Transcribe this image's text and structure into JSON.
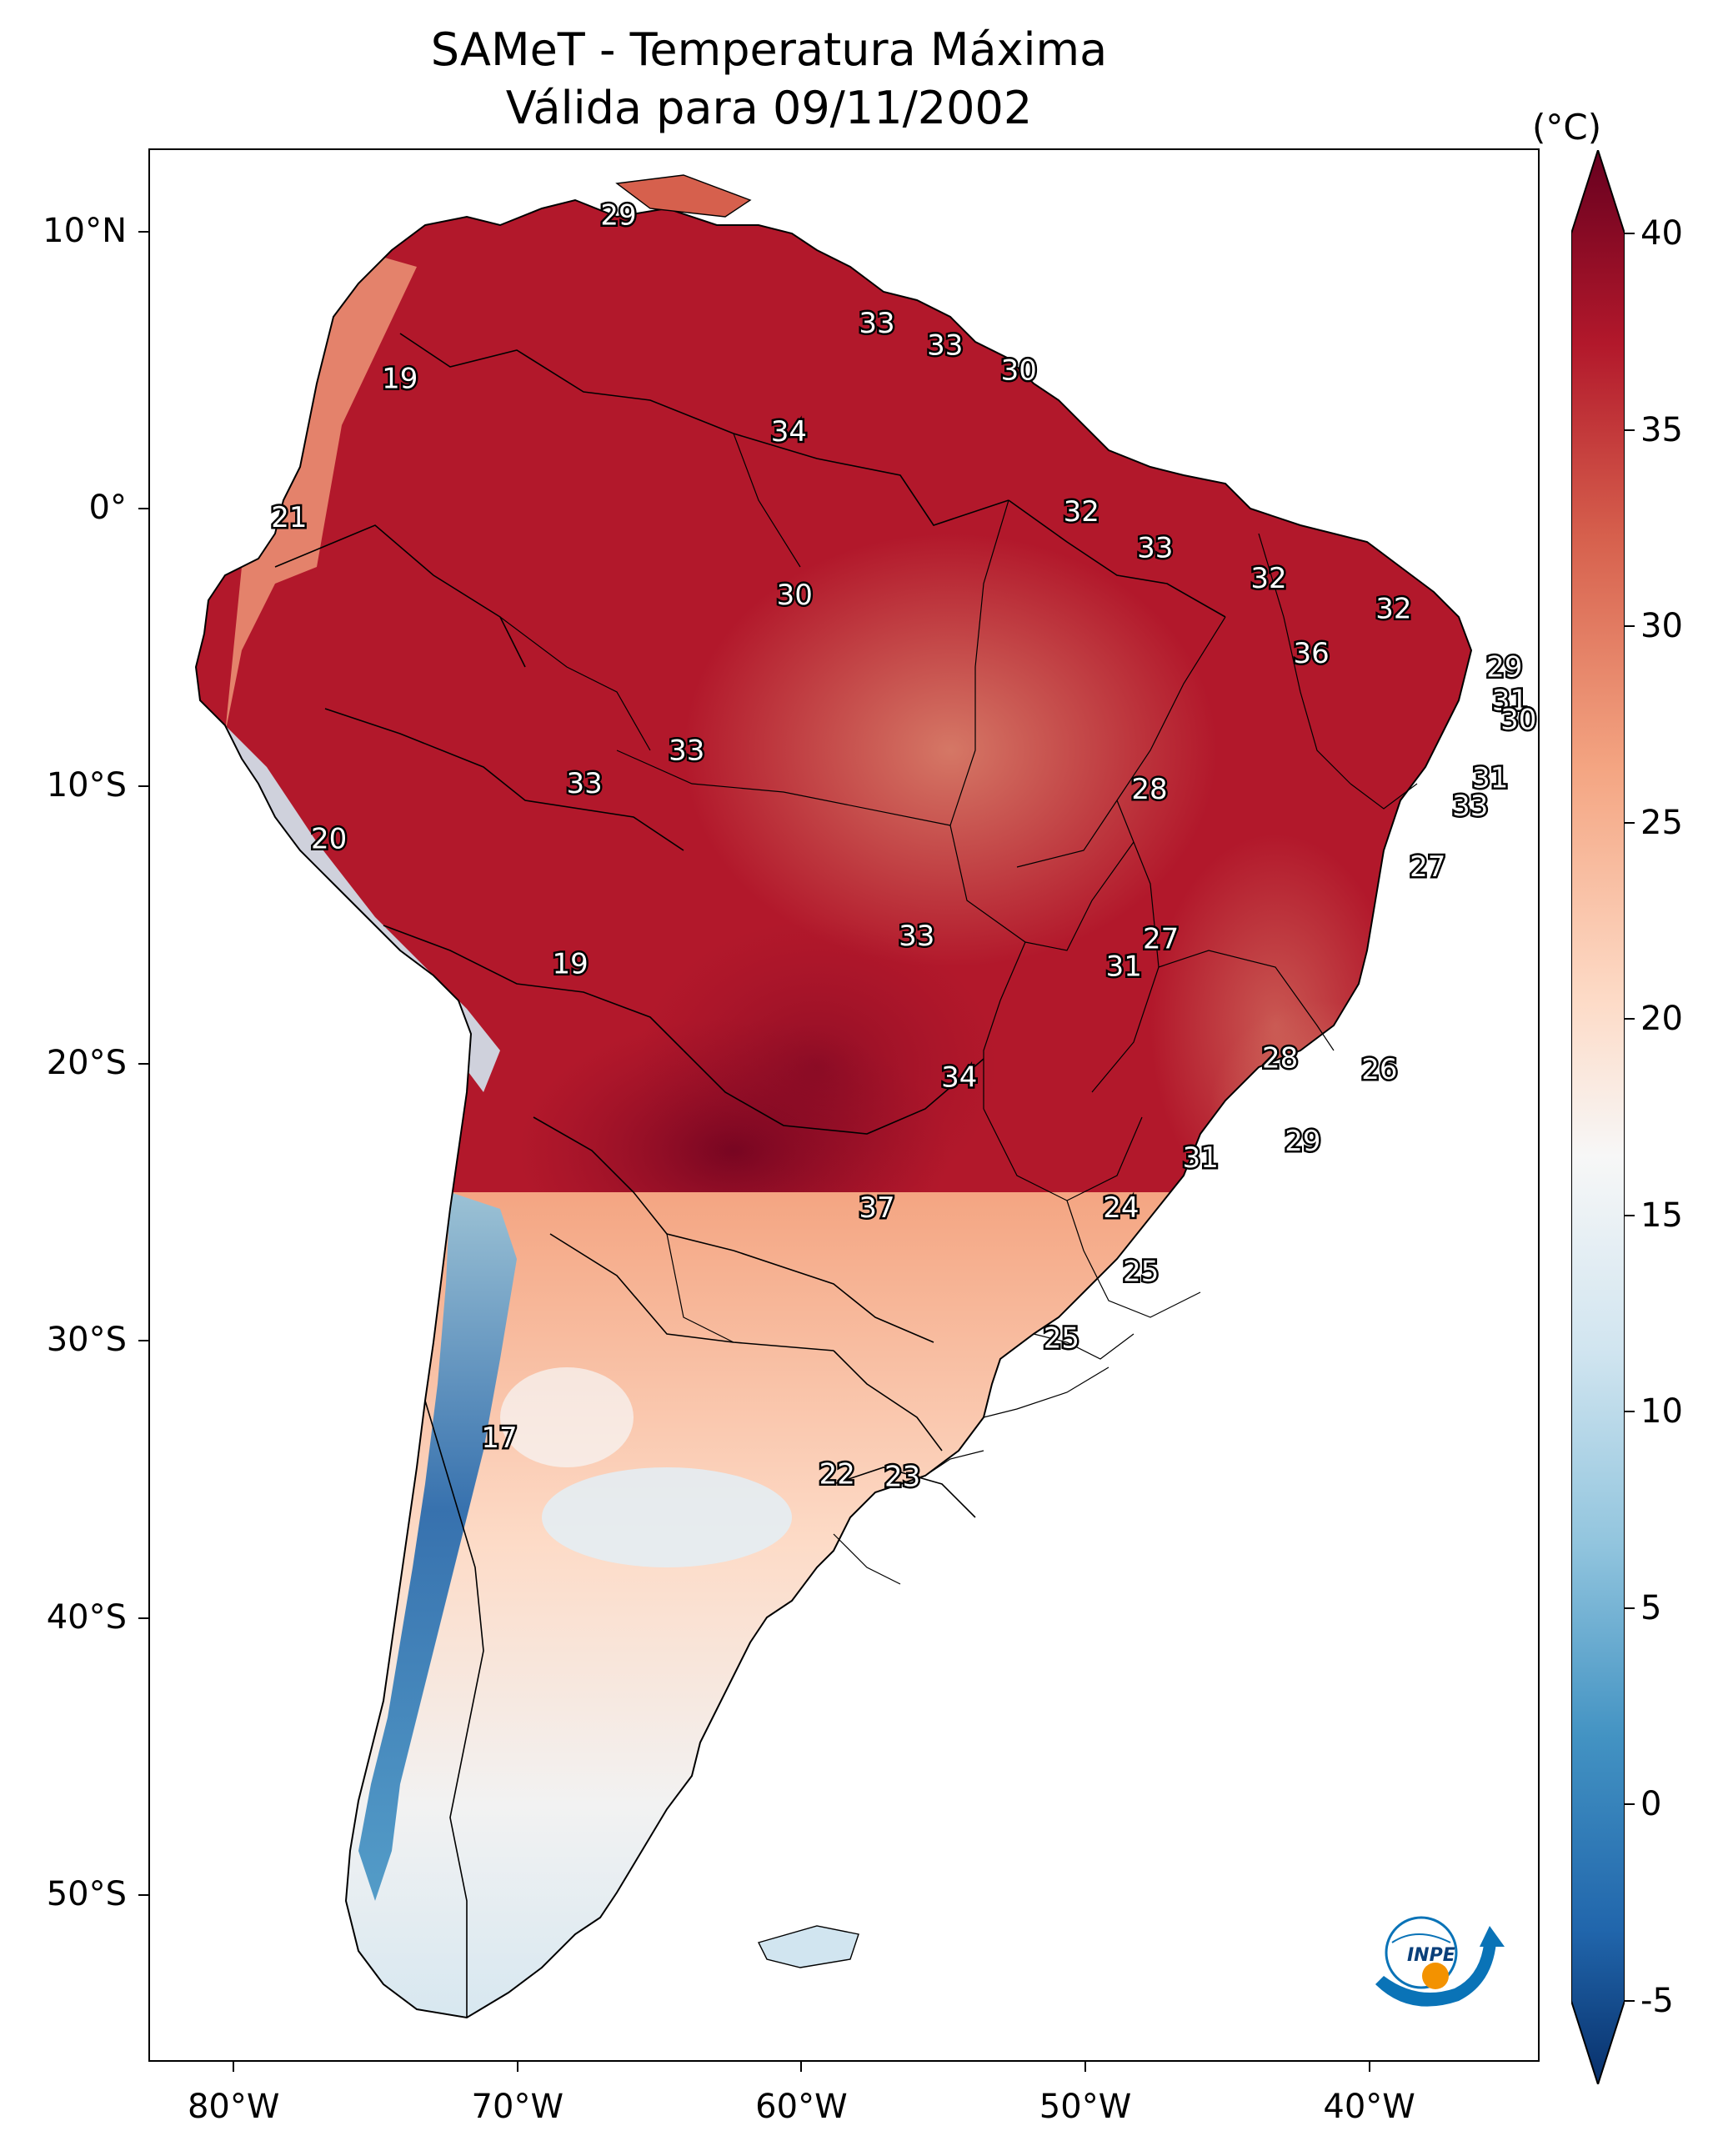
{
  "title_line1": "SAMeT - Temperatura Máxima",
  "title_line2": "Válida para 09/11/2002",
  "colorbar": {
    "unit": "(°C)",
    "ticks": [
      40,
      35,
      30,
      25,
      20,
      15,
      10,
      5,
      0,
      -5
    ],
    "range": [
      -5,
      40
    ],
    "colormap": "RdBu_r",
    "extend": "both",
    "colors": [
      "#08306b",
      "#2166ac",
      "#4393c3",
      "#92c5de",
      "#d1e5f0",
      "#f7f7f7",
      "#fddbc7",
      "#f4a582",
      "#d6604d",
      "#b2182b",
      "#67001f"
    ]
  },
  "axes": {
    "lat_labels": [
      "10°N",
      "0°",
      "10°S",
      "20°S",
      "30°S",
      "40°S",
      "50°S"
    ],
    "lat_values": [
      10,
      0,
      -10,
      -20,
      -30,
      -40,
      -50
    ],
    "lon_labels": [
      "80°W",
      "70°W",
      "60°W",
      "50°W",
      "40°W"
    ],
    "lon_values": [
      -80,
      -70,
      -60,
      -50,
      -40
    ],
    "lon_range": [
      -83,
      -34
    ],
    "lat_range": [
      -56,
      13
    ]
  },
  "temperature_labels": [
    {
      "text": "29",
      "lon": -66.5,
      "lat": 10.6
    },
    {
      "text": "19",
      "lon": -74.2,
      "lat": 4.7
    },
    {
      "text": "33",
      "lon": -57.4,
      "lat": 6.7
    },
    {
      "text": "33",
      "lon": -55.0,
      "lat": 5.9
    },
    {
      "text": "30",
      "lon": -52.4,
      "lat": 5.0
    },
    {
      "text": "34",
      "lon": -60.5,
      "lat": 2.8
    },
    {
      "text": "21",
      "lon": -78.1,
      "lat": -0.3
    },
    {
      "text": "32",
      "lon": -50.2,
      "lat": -0.1
    },
    {
      "text": "33",
      "lon": -47.6,
      "lat": -1.4
    },
    {
      "text": "32",
      "lon": -43.6,
      "lat": -2.5
    },
    {
      "text": "30",
      "lon": -60.3,
      "lat": -3.1
    },
    {
      "text": "32",
      "lon": -39.2,
      "lat": -3.6
    },
    {
      "text": "36",
      "lon": -42.1,
      "lat": -5.2
    },
    {
      "text": "29",
      "lon": -35.3,
      "lat": -5.7
    },
    {
      "text": "31",
      "lon": -35.1,
      "lat": -6.9
    },
    {
      "text": "30",
      "lon": -34.8,
      "lat": -7.6
    },
    {
      "text": "33",
      "lon": -64.1,
      "lat": -8.7
    },
    {
      "text": "33",
      "lon": -67.7,
      "lat": -9.9
    },
    {
      "text": "28",
      "lon": -47.8,
      "lat": -10.1
    },
    {
      "text": "31",
      "lon": -35.8,
      "lat": -9.7
    },
    {
      "text": "33",
      "lon": -36.5,
      "lat": -10.7
    },
    {
      "text": "20",
      "lon": -76.7,
      "lat": -11.9
    },
    {
      "text": "27",
      "lon": -38.0,
      "lat": -12.9
    },
    {
      "text": "19",
      "lon": -68.2,
      "lat": -16.4
    },
    {
      "text": "33",
      "lon": -56.0,
      "lat": -15.4
    },
    {
      "text": "27",
      "lon": -47.4,
      "lat": -15.5
    },
    {
      "text": "31",
      "lon": -48.7,
      "lat": -16.5
    },
    {
      "text": "28",
      "lon": -43.2,
      "lat": -19.8
    },
    {
      "text": "26",
      "lon": -39.7,
      "lat": -20.2
    },
    {
      "text": "34",
      "lon": -54.5,
      "lat": -20.5
    },
    {
      "text": "29",
      "lon": -42.4,
      "lat": -22.8
    },
    {
      "text": "31",
      "lon": -46.0,
      "lat": -23.4
    },
    {
      "text": "37",
      "lon": -57.4,
      "lat": -25.2
    },
    {
      "text": "24",
      "lon": -48.8,
      "lat": -25.2
    },
    {
      "text": "25",
      "lon": -48.1,
      "lat": -27.5
    },
    {
      "text": "25",
      "lon": -50.9,
      "lat": -29.9
    },
    {
      "text": "17",
      "lon": -70.7,
      "lat": -33.5
    },
    {
      "text": "22",
      "lon": -58.8,
      "lat": -34.8
    },
    {
      "text": "23",
      "lon": -56.5,
      "lat": -34.9
    }
  ]
}
